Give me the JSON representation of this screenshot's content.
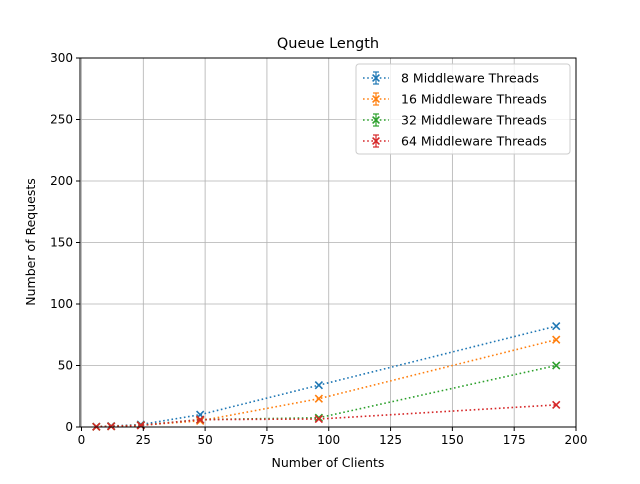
{
  "chart_data": {
    "type": "line",
    "title": "Queue Length",
    "xlabel": "Number of Clients",
    "ylabel": "Number of Requests",
    "xlim": [
      -0.6,
      200
    ],
    "ylim": [
      0,
      300
    ],
    "xticks": [
      0,
      25,
      50,
      75,
      100,
      125,
      150,
      175,
      200
    ],
    "yticks": [
      0,
      50,
      100,
      150,
      200,
      250,
      300
    ],
    "grid": true,
    "legend": "top-right",
    "marker": "x",
    "line_style": "dotted",
    "series": [
      {
        "name": "8 Middleware Threads",
        "color": "#1f77b4",
        "x": [
          6,
          12,
          24,
          48,
          96,
          192
        ],
        "y": [
          0.3,
          0.8,
          2,
          10,
          34,
          82
        ]
      },
      {
        "name": "16 Middleware Threads",
        "color": "#ff7f0e",
        "x": [
          6,
          12,
          24,
          48,
          96,
          192
        ],
        "y": [
          0.2,
          0.6,
          1.5,
          5,
          23,
          71
        ]
      },
      {
        "name": "32 Middleware Threads",
        "color": "#2ca02c",
        "x": [
          6,
          12,
          24,
          48,
          96,
          192
        ],
        "y": [
          0.2,
          0.5,
          1.4,
          6,
          7.5,
          50
        ]
      },
      {
        "name": "64 Middleware Threads",
        "color": "#d62728",
        "x": [
          6,
          12,
          24,
          48,
          96,
          192
        ],
        "y": [
          0.2,
          0.5,
          1.3,
          6,
          6.5,
          18
        ]
      }
    ]
  }
}
